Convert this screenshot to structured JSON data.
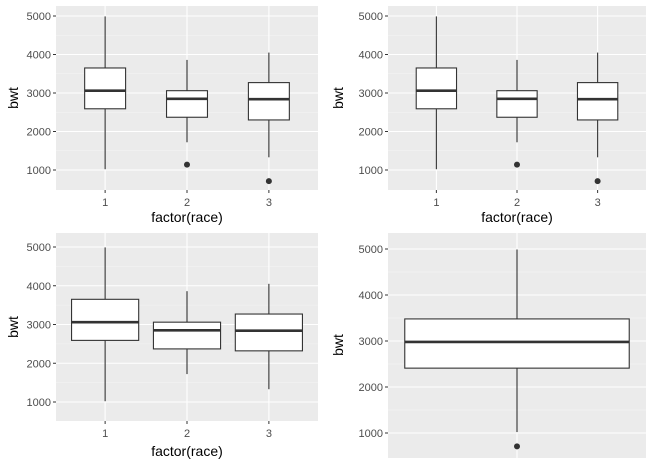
{
  "chart_data": [
    {
      "type": "boxplot",
      "xlabel": "factor(race)",
      "ylabel": "bwt",
      "categories": [
        "1",
        "2",
        "3"
      ],
      "ylim": [
        700,
        5000
      ],
      "yticks": [
        1000,
        2000,
        3000,
        4000,
        5000
      ],
      "boxes": [
        {
          "category": "1",
          "min": 1020,
          "q1": 2590,
          "median": 3060,
          "q3": 3650,
          "max": 4990,
          "outliers": []
        },
        {
          "category": "2",
          "min": 1720,
          "q1": 2370,
          "median": 2850,
          "q3": 3060,
          "max": 3860,
          "outliers": [
            1140
          ]
        },
        {
          "category": "3",
          "min": 1330,
          "q1": 2300,
          "median": 2840,
          "q3": 3270,
          "max": 4050,
          "outliers": [
            710
          ]
        }
      ]
    },
    {
      "type": "boxplot",
      "xlabel": "factor(race)",
      "ylabel": "bwt",
      "categories": [
        "1",
        "2",
        "3"
      ],
      "ylim": [
        700,
        5000
      ],
      "yticks": [
        1000,
        2000,
        3000,
        4000,
        5000
      ],
      "boxes": [
        {
          "category": "1",
          "min": 1020,
          "q1": 2590,
          "median": 3060,
          "q3": 3650,
          "max": 4990,
          "outliers": []
        },
        {
          "category": "2",
          "min": 1720,
          "q1": 2370,
          "median": 2850,
          "q3": 3060,
          "max": 3860,
          "outliers": [
            1140
          ]
        },
        {
          "category": "3",
          "min": 1330,
          "q1": 2300,
          "median": 2840,
          "q3": 3270,
          "max": 4050,
          "outliers": [
            710
          ]
        }
      ]
    },
    {
      "type": "boxplot",
      "xlabel": "factor(race)",
      "ylabel": "bwt",
      "categories": [
        "1",
        "2",
        "3"
      ],
      "ylim": [
        700,
        5000
      ],
      "yticks": [
        1000,
        2000,
        3000,
        4000,
        5000
      ],
      "boxes": [
        {
          "category": "1",
          "min": 1020,
          "q1": 2590,
          "median": 3060,
          "q3": 3650,
          "max": 4990,
          "outliers": []
        },
        {
          "category": "2",
          "min": 1720,
          "q1": 2370,
          "median": 2850,
          "q3": 3060,
          "max": 3860,
          "outliers": []
        },
        {
          "category": "3",
          "min": 1330,
          "q1": 2320,
          "median": 2840,
          "q3": 3270,
          "max": 4050,
          "outliers": []
        }
      ]
    },
    {
      "type": "boxplot",
      "xlabel": "",
      "ylabel": "bwt",
      "categories": [],
      "ylim": [
        700,
        5000
      ],
      "yticks": [
        1000,
        2000,
        3000,
        4000,
        5000
      ],
      "boxes": [
        {
          "category": "",
          "min": 1020,
          "q1": 2410,
          "median": 2980,
          "q3": 3480,
          "max": 4990,
          "outliers": [
            710
          ]
        }
      ]
    }
  ]
}
